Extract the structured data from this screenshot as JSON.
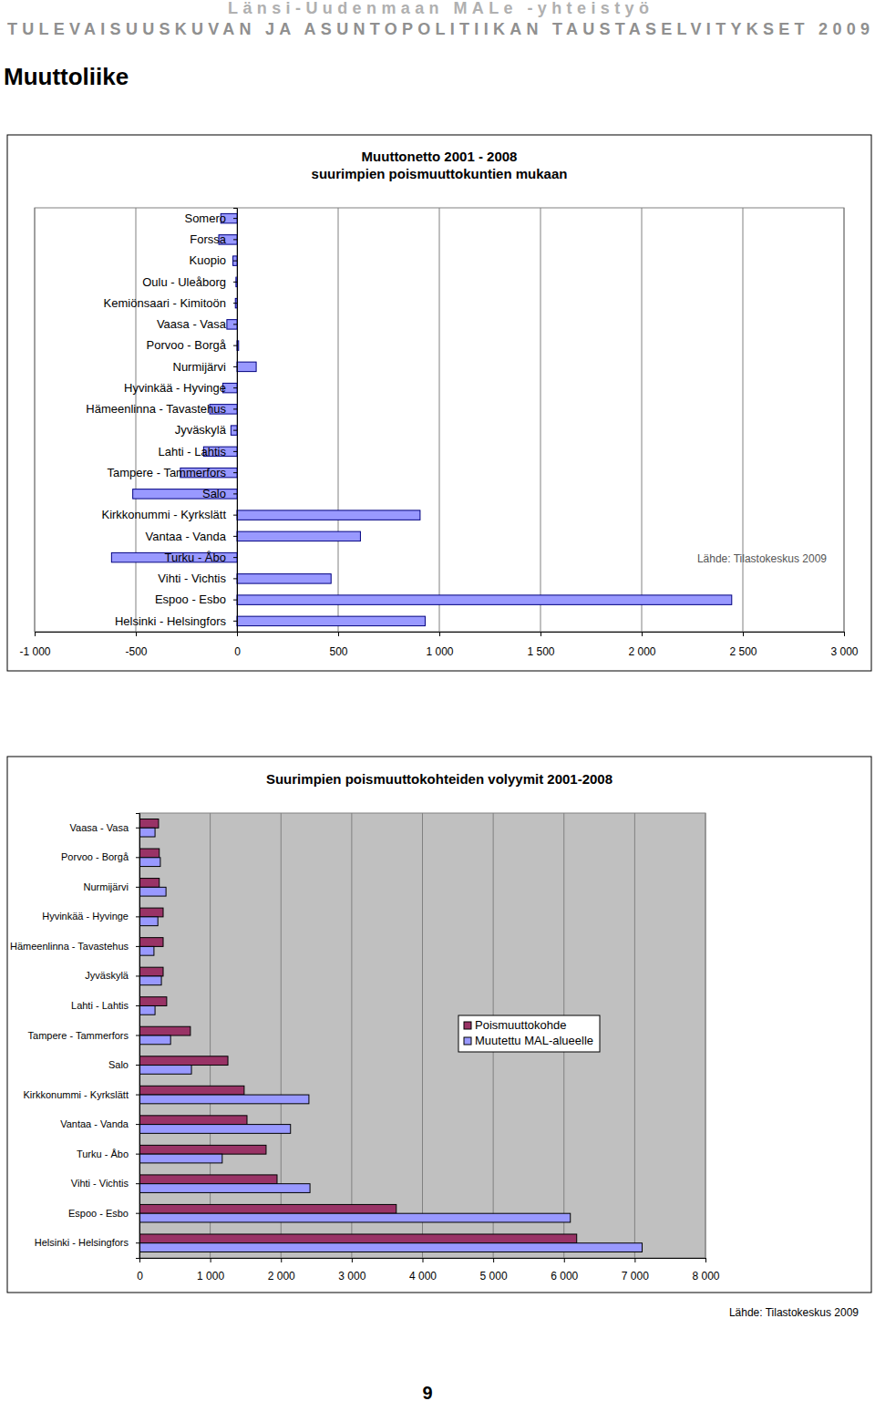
{
  "header": {
    "line1": "Länsi-Uudenmaan MALe -yhteistyö",
    "line2": "TULEVAISUUSKUVAN JA ASUNTOPOLITIIKAN TAUSTASELVITYKSET 2009"
  },
  "heading": "Muuttoliike",
  "chart_data": [
    {
      "type": "bar",
      "orientation": "horizontal",
      "title": "Muuttonetto 2001 - 2008",
      "subtitle": "suurimpien poismuuttokuntien mukaan",
      "annotations": [
        "Lähde: Tilastokeskus 2009"
      ],
      "categories": [
        "Somero",
        "Forssa",
        "Kuopio",
        "Oulu - Uleåborg",
        "Kemiönsaari - Kimitoön",
        "Vaasa - Vasa",
        "Porvoo - Borgå",
        "Nurmijärvi",
        "Hyvinkää - Hyvinge",
        "Hämeenlinna - Tavastehus",
        "Jyväskylä",
        "Lahti - Lahtis",
        "Tampere - Tammerfors",
        "Salo",
        "Kirkkonummi - Kyrkslätt",
        "Vantaa - Vanda",
        "Turku - Åbo",
        "Vihti - Vichtis",
        "Espoo - Esbo",
        "Helsinki - Helsingfors"
      ],
      "values": [
        -80,
        -90,
        -20,
        -5,
        -8,
        -50,
        8,
        95,
        -70,
        -135,
        -30,
        -165,
        -280,
        -515,
        905,
        610,
        -620,
        465,
        2445,
        930
      ],
      "color": "#9999ff",
      "xlim": [
        -1000,
        3000
      ],
      "xticks": [
        {
          "value": -1000,
          "label": "-1 000"
        },
        -500,
        0,
        500,
        {
          "value": 1000,
          "label": "1 000"
        },
        {
          "value": 1500,
          "label": "1 500"
        },
        {
          "value": 2000,
          "label": "2 000"
        },
        {
          "value": 2500,
          "label": "2 500"
        },
        {
          "value": 3000,
          "label": "3 000"
        }
      ],
      "grid": true
    },
    {
      "type": "bar",
      "orientation": "horizontal",
      "title": "Suurimpien poismuuttokohteiden volyymit 2001-2008",
      "annotations": [
        "Lähde: Tilastokeskus 2009"
      ],
      "categories": [
        "Vaasa - Vasa",
        "Porvoo - Borgå",
        "Nurmijärvi",
        "Hyvinkää - Hyvinge",
        "Hämeenlinna - Tavastehus",
        "Jyväskylä",
        "Lahti - Lahtis",
        "Tampere - Tammerfors",
        "Salo",
        "Kirkkonummi - Kyrkslätt",
        "Vantaa - Vanda",
        "Turku - Åbo",
        "Vihti - Vichtis",
        "Espoo - Esbo",
        "Helsinki - Helsingfors"
      ],
      "series": [
        {
          "name": "Poismuuttokohde",
          "color": "#993366",
          "values": [
            270,
            280,
            280,
            335,
            335,
            335,
            385,
            720,
            1250,
            1480,
            1520,
            1790,
            1945,
            3630,
            6180
          ]
        },
        {
          "name": "Muutettu MAL-alueelle",
          "color": "#9999ff",
          "values": [
            220,
            295,
            375,
            260,
            205,
            310,
            220,
            440,
            735,
            2395,
            2135,
            1170,
            2410,
            6090,
            7105
          ]
        }
      ],
      "xlim": [
        0,
        8000
      ],
      "xticks": [
        0,
        {
          "value": 1000,
          "label": "1 000"
        },
        {
          "value": 2000,
          "label": "2 000"
        },
        {
          "value": 3000,
          "label": "3 000"
        },
        {
          "value": 4000,
          "label": "4 000"
        },
        {
          "value": 5000,
          "label": "5 000"
        },
        {
          "value": 6000,
          "label": "6 000"
        },
        {
          "value": 7000,
          "label": "7 000"
        },
        {
          "value": 8000,
          "label": "8 000"
        }
      ],
      "grid": true,
      "legend": "right"
    }
  ],
  "page_number": 9
}
